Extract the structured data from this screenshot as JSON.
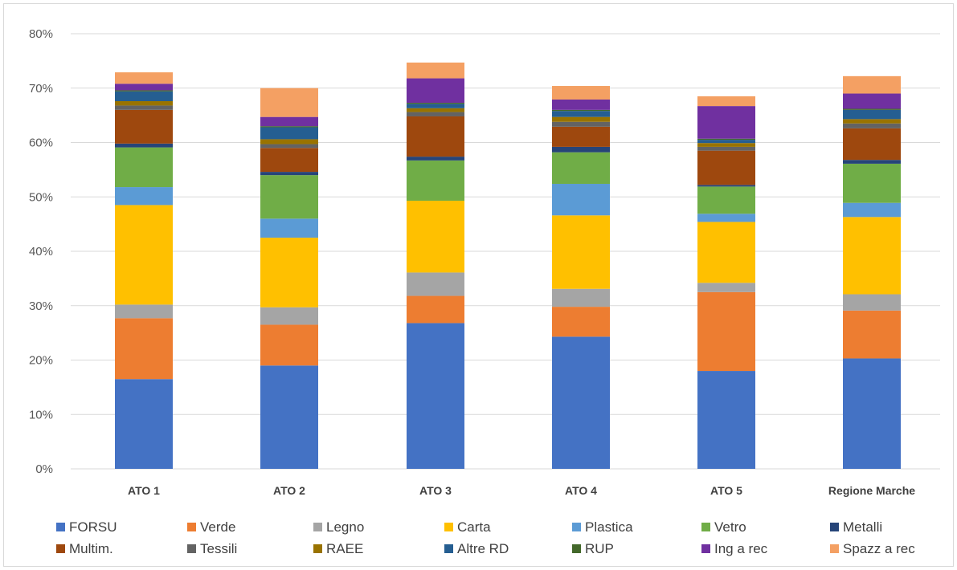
{
  "chart_data": {
    "type": "bar",
    "stacked": true,
    "title": "",
    "xlabel": "",
    "ylabel": "",
    "ylim": [
      0,
      80
    ],
    "yticks": [
      "0%",
      "10%",
      "20%",
      "30%",
      "40%",
      "50%",
      "60%",
      "70%",
      "80%"
    ],
    "grid": true,
    "legend_position": "bottom",
    "categories": [
      "ATO 1",
      "ATO 2",
      "ATO 3",
      "ATO 4",
      "ATO 5",
      "Regione Marche"
    ],
    "series": [
      {
        "name": "FORSU",
        "color": "#4472C4",
        "values": [
          16.5,
          19.0,
          26.8,
          24.3,
          18.0,
          20.3
        ]
      },
      {
        "name": "Verde",
        "color": "#ED7D31",
        "values": [
          11.2,
          7.5,
          5.0,
          5.5,
          14.5,
          8.8
        ]
      },
      {
        "name": "Legno",
        "color": "#A5A5A5",
        "values": [
          2.5,
          3.2,
          4.3,
          3.3,
          1.7,
          3.0
        ]
      },
      {
        "name": "Carta",
        "color": "#FFC000",
        "values": [
          18.3,
          12.8,
          13.2,
          13.5,
          11.2,
          14.2
        ]
      },
      {
        "name": "Plastica",
        "color": "#5B9BD5",
        "values": [
          3.3,
          3.5,
          0.0,
          5.8,
          1.5,
          2.6
        ]
      },
      {
        "name": "Vetro",
        "color": "#70AD47",
        "values": [
          7.3,
          8.0,
          7.4,
          5.8,
          5.0,
          7.2
        ]
      },
      {
        "name": "Metalli",
        "color": "#264478",
        "values": [
          0.7,
          0.6,
          0.7,
          1.0,
          0.3,
          0.7
        ]
      },
      {
        "name": "Multim.",
        "color": "#9E480E",
        "values": [
          6.2,
          4.4,
          7.4,
          3.7,
          6.3,
          5.8
        ]
      },
      {
        "name": "Tessili",
        "color": "#636363",
        "values": [
          0.8,
          0.7,
          0.8,
          0.9,
          0.7,
          0.9
        ]
      },
      {
        "name": "RAEE",
        "color": "#997300",
        "values": [
          0.8,
          0.9,
          0.7,
          0.9,
          0.7,
          0.8
        ]
      },
      {
        "name": "Altre RD",
        "color": "#255E91",
        "values": [
          1.8,
          2.2,
          0.8,
          1.1,
          0.6,
          1.7
        ]
      },
      {
        "name": "RUP",
        "color": "#43682B",
        "values": [
          0.2,
          0.2,
          0.2,
          0.2,
          0.2,
          0.2
        ]
      },
      {
        "name": "Ing a rec",
        "color": "#7030A0",
        "values": [
          1.2,
          1.7,
          4.5,
          1.9,
          6.0,
          2.8
        ]
      },
      {
        "name": "Spazz a rec",
        "color": "#F4A063",
        "values": [
          2.1,
          5.3,
          2.9,
          2.5,
          1.8,
          3.2
        ]
      }
    ]
  }
}
